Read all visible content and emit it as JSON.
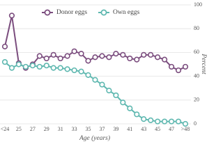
{
  "chart_data": {
    "type": "line",
    "x_label": "Age (years)",
    "y_label": "Percent",
    "categories": [
      "<24",
      null,
      "25",
      null,
      "27",
      null,
      "29",
      null,
      "31",
      null,
      "33",
      null,
      "35",
      null,
      "37",
      null,
      "39",
      null,
      "41",
      null,
      "43",
      null,
      "45",
      null,
      "47",
      null,
      ">48"
    ],
    "series": [
      {
        "name": "Donor eggs",
        "color": "#7b4d7e",
        "values": [
          65,
          91,
          51,
          47,
          50,
          57,
          55,
          58,
          55,
          57,
          61,
          59,
          53,
          56,
          57,
          56,
          59,
          58,
          55,
          54,
          58,
          58,
          56,
          54,
          48,
          45,
          48
        ]
      },
      {
        "name": "Own eggs",
        "color": "#5fb8b0",
        "values": [
          52,
          47,
          50,
          48,
          49,
          48,
          49,
          47,
          47,
          46,
          45,
          44,
          41,
          37,
          33,
          28,
          24,
          18,
          13,
          8,
          4,
          3,
          2,
          2,
          2,
          2,
          0
        ]
      }
    ],
    "ylim": [
      0,
      100
    ],
    "yticks": [
      0,
      20,
      40,
      60,
      80,
      100
    ],
    "grid": true
  }
}
